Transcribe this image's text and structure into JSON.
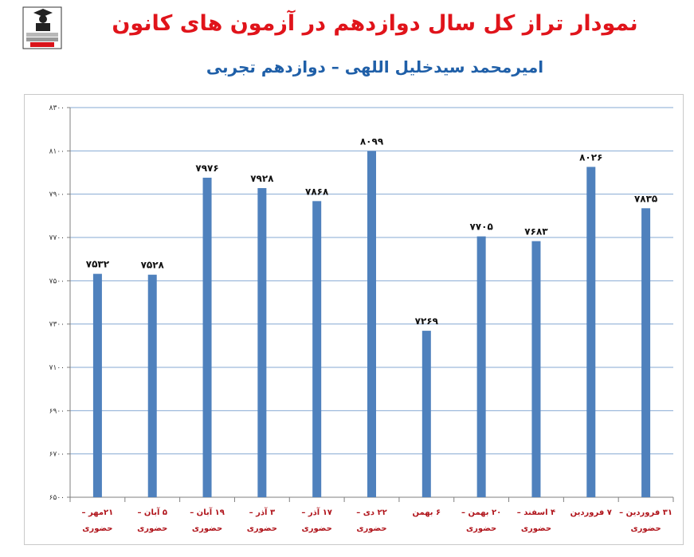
{
  "header": {
    "title": "نمودار تراز کل سال دوازدهم در آزمون های کانون",
    "subtitle": "امیرمحمد سیدخلیل اللهی – دوازدهم تجربی"
  },
  "logo": {
    "icon": "graduate-person-logo",
    "text_lines": [
      "کانون",
      "فرهنگی",
      "آموزش",
      "قلم‌چی"
    ]
  },
  "chart_data": {
    "type": "bar",
    "title": "نمودار تراز کل سال دوازدهم در آزمون های کانون",
    "subtitle": "امیرمحمد سیدخلیل اللهی – دوازدهم تجربی",
    "categories": [
      [
        "۲۱مهر –",
        "حضوری"
      ],
      [
        "۵ آبان –",
        "حضوری"
      ],
      [
        "۱۹ آبان –",
        "حضوری"
      ],
      [
        "۳ آذر –",
        "حضوری"
      ],
      [
        "۱۷ آذر –",
        "حضوری"
      ],
      [
        "۲۲ دی –",
        "حضوری"
      ],
      [
        "۶ بهمن"
      ],
      [
        "۲۰ بهمن –",
        "حضوری"
      ],
      [
        "۴ اسفند –",
        "حضوری"
      ],
      [
        "۷ فروردین"
      ],
      [
        "۳۱ فروردین –",
        "حضوری"
      ]
    ],
    "values": [
      7532,
      7528,
      7976,
      7928,
      7868,
      8099,
      7269,
      7705,
      7683,
      8026,
      7835
    ],
    "value_labels": [
      "۷۵۳۲",
      "۷۵۲۸",
      "۷۹۷۶",
      "۷۹۲۸",
      "۷۸۶۸",
      "۸۰۹۹",
      "۷۲۶۹",
      "۷۷۰۵",
      "۷۶۸۳",
      "۸۰۲۶",
      "۷۸۳۵"
    ],
    "ylim": [
      6500,
      8300
    ],
    "yticks": [
      6500,
      6700,
      6900,
      7100,
      7300,
      7500,
      7700,
      7900,
      8100,
      8300
    ],
    "ytick_labels": [
      "۶۵۰۰",
      "۶۷۰۰",
      "۶۹۰۰",
      "۷۱۰۰",
      "۷۳۰۰",
      "۷۵۰۰",
      "۷۷۰۰",
      "۷۹۰۰",
      "۸۱۰۰",
      "۸۳۰۰"
    ],
    "grid": true,
    "legend": "none",
    "colors": {
      "bar": "#4f81bd",
      "grid": "#86a9d3",
      "axis": "#7f7f7f",
      "category_text": "#b0141b",
      "title": "#e0141b",
      "subtitle": "#1f5fa8"
    }
  }
}
